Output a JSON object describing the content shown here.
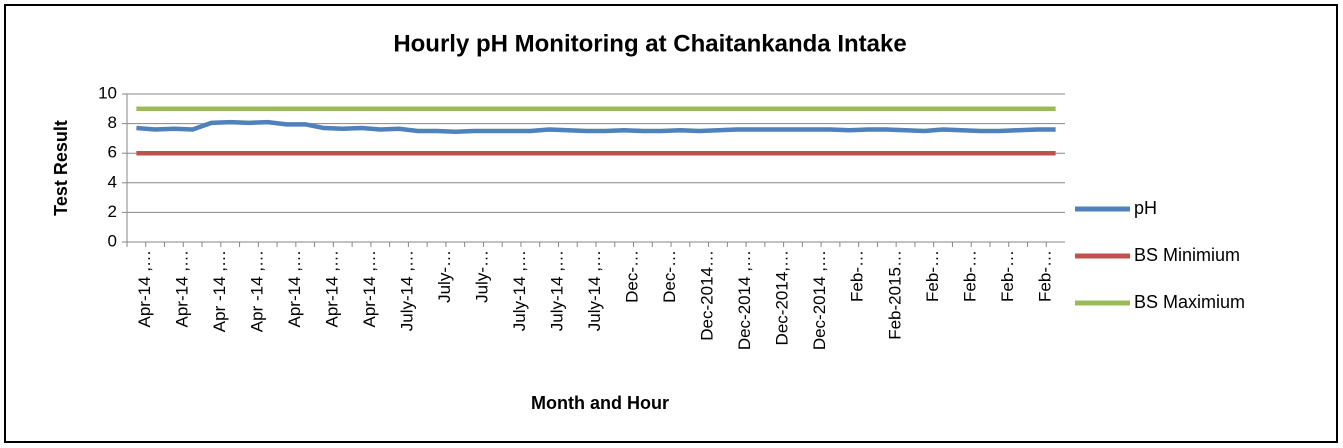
{
  "chart_data": {
    "type": "line",
    "title": "Hourly pH Monitoring at Chaitankanda Intake",
    "x_label": "Month and Hour",
    "y_label": "Test Result",
    "categories": [
      "Apr-14 ,…",
      null,
      "Apr-14 ,…",
      null,
      "Apr -14 ,…",
      null,
      "Apr -14 ,…",
      null,
      "Apr-14 ,…",
      null,
      "Apr-14 ,…",
      null,
      "Apr-14 ,…",
      null,
      "July-14 ,…",
      null,
      "July-…",
      null,
      "July-…",
      null,
      "July-14 ,…",
      null,
      "July-14 ,…",
      null,
      "July-14 ,…",
      null,
      "Dec-…",
      null,
      "Dec-…",
      null,
      "Dec-2014…",
      null,
      "Dec-2014 ,…",
      null,
      "Dec-2014,…",
      null,
      "Dec-2014 ,…",
      null,
      "Feb-…",
      null,
      "Feb-2015…",
      null,
      "Feb-…",
      null,
      "Feb-…",
      null,
      "Feb-…",
      null,
      "Feb-…",
      null
    ],
    "series": [
      {
        "name": "pH",
        "color": "#4f81bd",
        "values": [
          7.7,
          7.6,
          7.65,
          7.6,
          8.05,
          8.1,
          8.05,
          8.1,
          7.95,
          7.95,
          7.7,
          7.65,
          7.7,
          7.6,
          7.65,
          7.5,
          7.5,
          7.45,
          7.5,
          7.5,
          7.5,
          7.5,
          7.6,
          7.55,
          7.5,
          7.5,
          7.55,
          7.5,
          7.5,
          7.55,
          7.5,
          7.55,
          7.6,
          7.6,
          7.6,
          7.6,
          7.6,
          7.6,
          7.55,
          7.6,
          7.6,
          7.55,
          7.5,
          7.6,
          7.55,
          7.5,
          7.5,
          7.55,
          7.6,
          7.6
        ]
      },
      {
        "name": "BS Minimium",
        "color": "#c0504d",
        "values": [
          6,
          6,
          6,
          6,
          6,
          6,
          6,
          6,
          6,
          6,
          6,
          6,
          6,
          6,
          6,
          6,
          6,
          6,
          6,
          6,
          6,
          6,
          6,
          6,
          6,
          6,
          6,
          6,
          6,
          6,
          6,
          6,
          6,
          6,
          6,
          6,
          6,
          6,
          6,
          6,
          6,
          6,
          6,
          6,
          6,
          6,
          6,
          6,
          6,
          6
        ]
      },
      {
        "name": "BS Maximium",
        "color": "#9bbb59",
        "values": [
          9,
          9,
          9,
          9,
          9,
          9,
          9,
          9,
          9,
          9,
          9,
          9,
          9,
          9,
          9,
          9,
          9,
          9,
          9,
          9,
          9,
          9,
          9,
          9,
          9,
          9,
          9,
          9,
          9,
          9,
          9,
          9,
          9,
          9,
          9,
          9,
          9,
          9,
          9,
          9,
          9,
          9,
          9,
          9,
          9,
          9,
          9,
          9,
          9,
          9
        ]
      }
    ],
    "ylim": [
      0,
      10
    ],
    "yticks": [
      0,
      2,
      4,
      6,
      8,
      10
    ],
    "grid": true,
    "legend": "right"
  }
}
